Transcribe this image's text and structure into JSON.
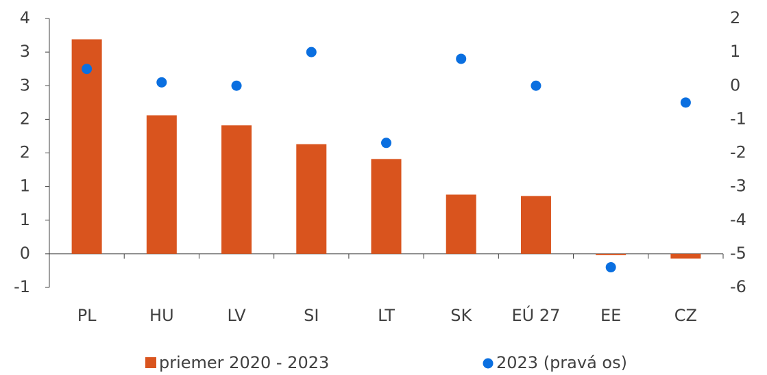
{
  "chart_data": {
    "type": "bar_dot",
    "categories": [
      "PL",
      "HU",
      "LV",
      "SI",
      "LT",
      "SK",
      "EÚ 27",
      "EE",
      "CZ"
    ],
    "series": [
      {
        "name": "priemer 2020 - 2023",
        "color": "#d9541e",
        "values": [
          3.19,
          2.06,
          1.91,
          1.63,
          1.41,
          0.88,
          0.86,
          -0.02,
          -0.07
        ]
      },
      {
        "name": "2023 (pravá os)",
        "color": "#0a6fe0",
        "axis": "y2",
        "values": [
          0.5,
          0.1,
          0,
          1.0,
          -1.7,
          0.8,
          0,
          -5.4,
          -0.5
        ]
      }
    ],
    "ylim": [
      -0.5,
      3.5
    ],
    "yticks": [
      {
        "value": -0.5,
        "label": "-1"
      },
      0,
      {
        "value": 0.5,
        "label": "1"
      },
      1,
      {
        "value": 1.5,
        "label": "2"
      },
      2,
      {
        "value": 2.5,
        "label": "3"
      },
      3,
      {
        "value": 3.5,
        "label": "4"
      }
    ],
    "y2lim": [
      -6,
      2
    ],
    "y2ticks": [
      -6,
      -5,
      -4,
      -3,
      -2,
      -1,
      0,
      1,
      2
    ],
    "legend": "bottom"
  }
}
